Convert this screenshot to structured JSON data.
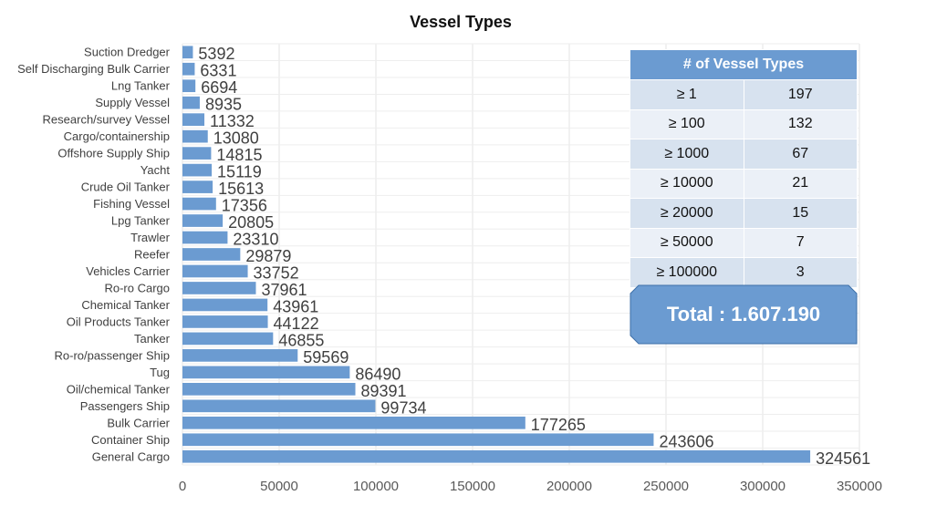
{
  "chart_data": {
    "type": "bar",
    "orientation": "horizontal",
    "title": "Vessel Types",
    "xlabel": "",
    "ylabel": "",
    "xlim": [
      0,
      350000
    ],
    "x_ticks": [
      "0",
      "50000",
      "100000",
      "150000",
      "200000",
      "250000",
      "300000",
      "350000"
    ],
    "grid": true,
    "bar_color": "#6b9bd1",
    "categories": [
      "Suction Dredger",
      "Self Discharging Bulk Carrier",
      "Lng Tanker",
      "Supply Vessel",
      "Research/survey Vessel",
      "Cargo/containership",
      "Offshore Supply Ship",
      "Yacht",
      "Crude Oil Tanker",
      "Fishing Vessel",
      "Lpg Tanker",
      "Trawler",
      "Reefer",
      "Vehicles Carrier",
      "Ro-ro Cargo",
      "Chemical Tanker",
      "Oil Products Tanker",
      "Tanker",
      "Ro-ro/passenger Ship",
      "Tug",
      "Oil/chemical Tanker",
      "Passengers Ship",
      "Bulk Carrier",
      "Container Ship",
      "General Cargo"
    ],
    "values": [
      5392,
      6331,
      6694,
      8935,
      11332,
      13080,
      14815,
      15119,
      15613,
      17356,
      20805,
      23310,
      29879,
      33752,
      37961,
      43961,
      44122,
      46855,
      59569,
      86490,
      89391,
      99734,
      177265,
      243606,
      324561
    ]
  },
  "summary_table": {
    "header": "# of Vessel Types",
    "rows": [
      {
        "threshold": "≥ 1",
        "count": "197"
      },
      {
        "threshold": "≥ 100",
        "count": "132"
      },
      {
        "threshold": "≥ 1000",
        "count": "67"
      },
      {
        "threshold": "≥ 10000",
        "count": "21"
      },
      {
        "threshold": "≥ 20000",
        "count": "15"
      },
      {
        "threshold": "≥ 50000",
        "count": "7"
      },
      {
        "threshold": "≥ 100000",
        "count": "3"
      }
    ]
  },
  "total": {
    "label": "Total : 1.607.190",
    "color": "#6b9bd1"
  }
}
